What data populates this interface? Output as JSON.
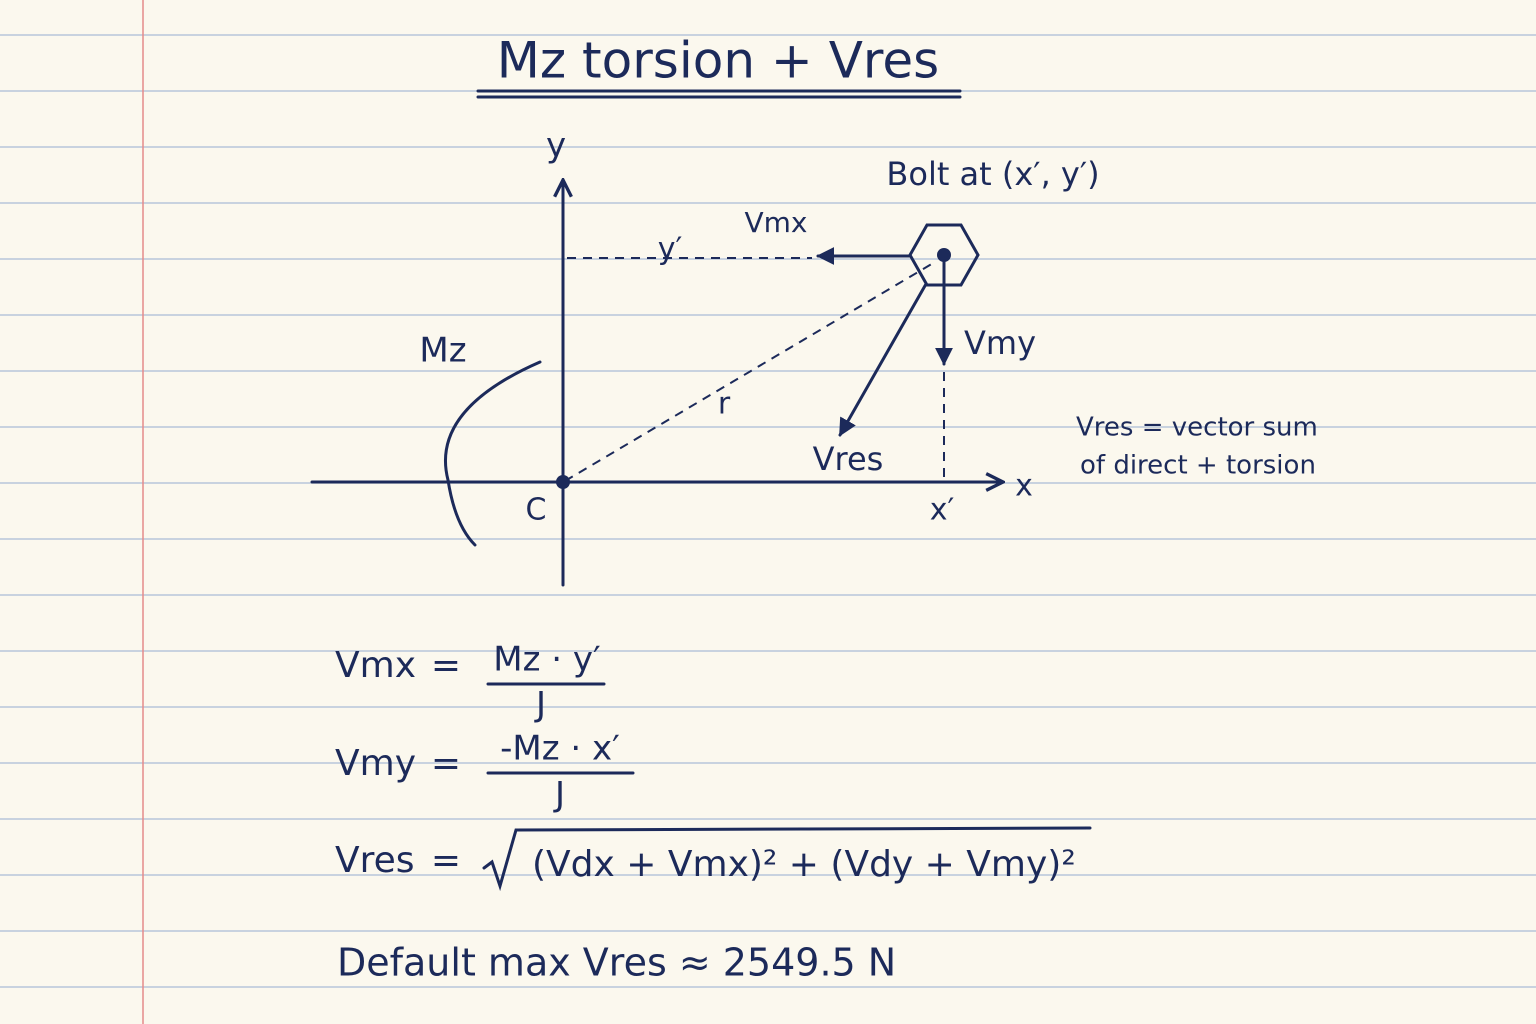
{
  "title": "Mz torsion + Vres",
  "diagram": {
    "axis_y": "y",
    "axis_x": "x",
    "origin": "C",
    "y_prime": "y′",
    "x_prime": "x′",
    "radius": "r",
    "moment": "Mz",
    "bolt": "Bolt at (x′, y′)",
    "vmx": "Vmx",
    "vmy": "Vmy",
    "vres": "Vres",
    "note": [
      "Vres = vector sum",
      "of direct + torsion"
    ]
  },
  "equations": [
    {
      "lhs": "Vmx",
      "sign": "=",
      "numerator": "Mz · y′",
      "denominator": "J"
    },
    {
      "lhs": "Vmy",
      "sign": "=",
      "numerator": "-Mz · x′",
      "denominator": "J"
    },
    {
      "lhs": "Vres",
      "sign": "=",
      "radicand": "(Vdx + Vmx)² + (Vdy + Vmy)²"
    }
  ],
  "result": "Default max Vres ≈ 2549.5 N"
}
